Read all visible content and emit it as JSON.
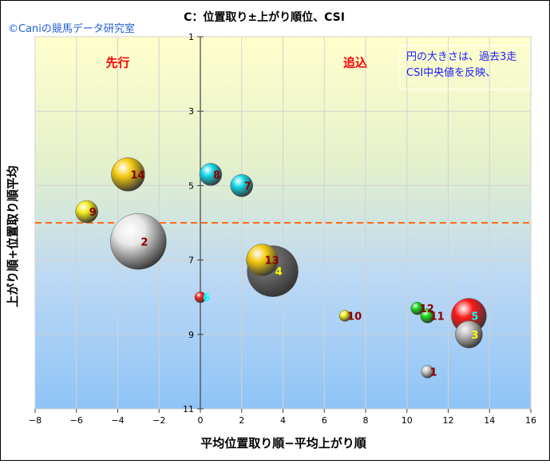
{
  "copyright": "©Caniの競馬データ研究室",
  "chart_data": {
    "type": "bubble",
    "title": "C：位置取り±上がり順位、CSI",
    "xlabel": "平均位置取り順−平均上がり順",
    "ylabel": "上がり順+位置取り順平均",
    "xlim": [
      -8,
      16
    ],
    "ylim": [
      1,
      11
    ],
    "y_inverted": true,
    "x_ticks": [
      -8,
      -6,
      -4,
      -2,
      0,
      2,
      4,
      6,
      8,
      10,
      12,
      14,
      16
    ],
    "y_ticks": [
      1,
      3,
      5,
      7,
      9,
      11
    ],
    "grid": true,
    "reference_line_y": 6,
    "annotations": [
      {
        "text": "先行",
        "color": "#ff0000"
      },
      {
        "text": "追込",
        "color": "#ff0000"
      }
    ],
    "legend_note": [
      "円の大きさは、過去3走",
      "CSI中央値を反映、"
    ],
    "points": [
      {
        "label": "1",
        "x": 11,
        "y": 10,
        "size": 8,
        "color": "#c8c8c8",
        "label_color": "#8b0000"
      },
      {
        "label": "2",
        "x": -3,
        "y": 6.5,
        "size": 35,
        "color": "#e8e8e8",
        "label_color": "#8b0000"
      },
      {
        "label": "3",
        "x": 13,
        "y": 9,
        "size": 17,
        "color": "#bdbdbd",
        "label_color": "#ffff00"
      },
      {
        "label": "4",
        "x": 3.5,
        "y": 7.3,
        "size": 32,
        "color": "#6b6b6b",
        "label_color": "#ffff00"
      },
      {
        "label": "5",
        "x": 13,
        "y": 8.5,
        "size": 22,
        "color": "#ff1a1a",
        "label_color": "#00ffff"
      },
      {
        "label": "6",
        "x": 0,
        "y": 8,
        "size": 7,
        "color": "#ff2020",
        "label_color": "#00ffff"
      },
      {
        "label": "7",
        "x": 2,
        "y": 5,
        "size": 14,
        "color": "#14d8e8",
        "label_color": "#8b0000"
      },
      {
        "label": "8",
        "x": 0.5,
        "y": 4.7,
        "size": 14,
        "color": "#14d8e8",
        "label_color": "#8b0000"
      },
      {
        "label": "9",
        "x": -5.5,
        "y": 5.7,
        "size": 14,
        "color": "#f2ea1a",
        "label_color": "#8b0000"
      },
      {
        "label": "10",
        "x": 7,
        "y": 8.5,
        "size": 7,
        "color": "#f2ea1a",
        "label_color": "#8b0000"
      },
      {
        "label": "11",
        "x": 11,
        "y": 8.5,
        "size": 9,
        "color": "#18dd18",
        "label_color": "#8b0000"
      },
      {
        "label": "12",
        "x": 10.5,
        "y": 8.3,
        "size": 8,
        "color": "#18dd18",
        "label_color": "#8b0000"
      },
      {
        "label": "13",
        "x": 3,
        "y": 7,
        "size": 20,
        "color": "#f5cc10",
        "label_color": "#8b0000"
      },
      {
        "label": "14",
        "x": -3.5,
        "y": 4.7,
        "size": 21,
        "color": "#f5cc10",
        "label_color": "#8b0000"
      }
    ]
  }
}
